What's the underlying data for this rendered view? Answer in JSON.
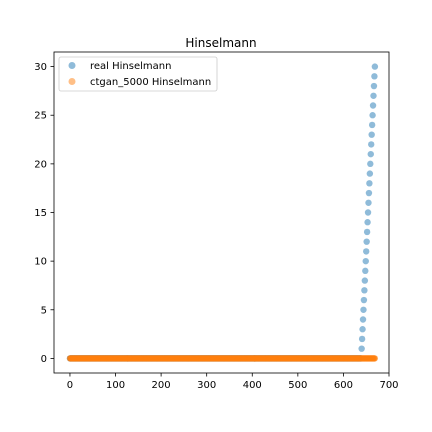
{
  "chart_data": {
    "type": "scatter",
    "title": "Hinselmann",
    "xlabel": "",
    "ylabel": "",
    "xlim": [
      -35,
      700
    ],
    "ylim": [
      -1.5,
      31.5
    ],
    "xticks": [
      0,
      100,
      200,
      300,
      400,
      500,
      600,
      700
    ],
    "yticks": [
      0,
      5,
      10,
      15,
      20,
      25,
      30
    ],
    "grid": false,
    "legend_position": "top-left",
    "series": [
      {
        "name": "real Hinselmann",
        "color": "#1f77b4",
        "x_range": [
          0,
          639
        ],
        "y_constant": 0,
        "extra_points": [
          {
            "x": 640,
            "y": 1
          },
          {
            "x": 641,
            "y": 2
          },
          {
            "x": 642,
            "y": 3
          },
          {
            "x": 643,
            "y": 4
          },
          {
            "x": 644,
            "y": 5
          },
          {
            "x": 645,
            "y": 6
          },
          {
            "x": 646,
            "y": 7
          },
          {
            "x": 647,
            "y": 8
          },
          {
            "x": 648,
            "y": 9
          },
          {
            "x": 649,
            "y": 10
          },
          {
            "x": 650,
            "y": 11
          },
          {
            "x": 651,
            "y": 12
          },
          {
            "x": 652,
            "y": 13
          },
          {
            "x": 653,
            "y": 14
          },
          {
            "x": 654,
            "y": 15
          },
          {
            "x": 655,
            "y": 16
          },
          {
            "x": 656,
            "y": 17
          },
          {
            "x": 657,
            "y": 18
          },
          {
            "x": 658,
            "y": 19
          },
          {
            "x": 659,
            "y": 20
          },
          {
            "x": 660,
            "y": 21
          },
          {
            "x": 661,
            "y": 22
          },
          {
            "x": 662,
            "y": 23
          },
          {
            "x": 663,
            "y": 24
          },
          {
            "x": 664,
            "y": 25
          },
          {
            "x": 665,
            "y": 26
          },
          {
            "x": 666,
            "y": 27
          },
          {
            "x": 667,
            "y": 28
          },
          {
            "x": 668,
            "y": 29
          },
          {
            "x": 669,
            "y": 30
          }
        ]
      },
      {
        "name": "ctgan_5000 Hinselmann",
        "color": "#ff7f0e",
        "x_range": [
          0,
          669
        ],
        "y_constant": 0,
        "extra_points": []
      }
    ]
  }
}
